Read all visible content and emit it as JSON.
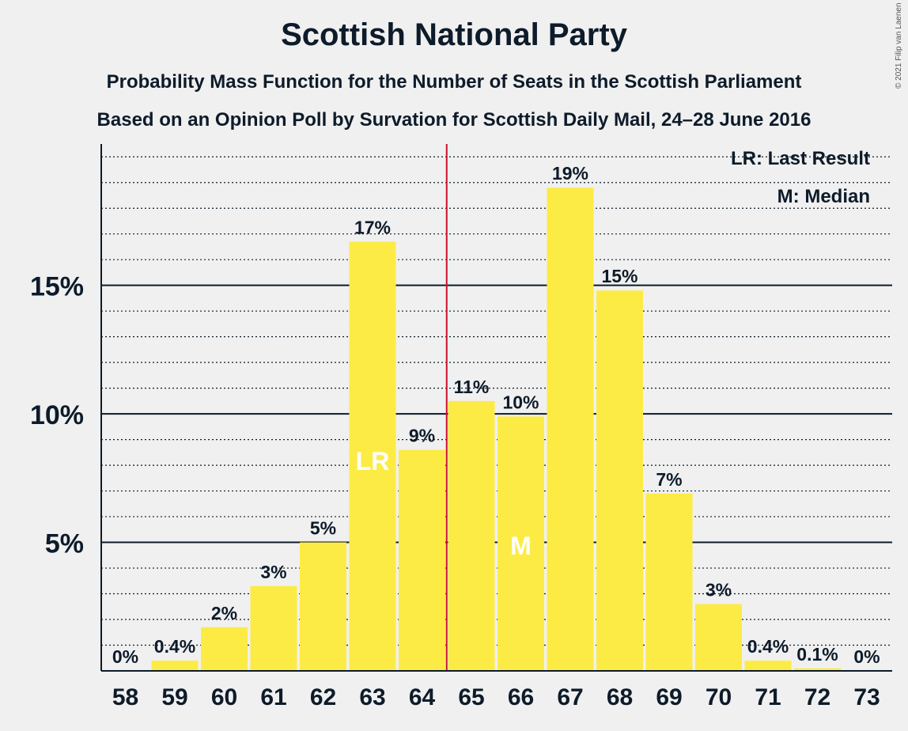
{
  "header": {
    "title": "Scottish National Party",
    "subtitle1": "Probability Mass Function for the Number of Seats in the Scottish Parliament",
    "subtitle2": "Based on an Opinion Poll by Survation for Scottish Daily Mail, 24–28 June 2016",
    "copyright": "© 2021 Filip van Laenen"
  },
  "legend": {
    "last_result": "LR: Last Result",
    "median": "M: Median"
  },
  "chart_data": {
    "type": "bar",
    "title": "Scottish National Party",
    "xlabel": "",
    "ylabel": "",
    "categories": [
      "58",
      "59",
      "60",
      "61",
      "62",
      "63",
      "64",
      "65",
      "66",
      "67",
      "68",
      "69",
      "70",
      "71",
      "72",
      "73"
    ],
    "values": [
      0,
      0.4,
      1.7,
      3.3,
      5.0,
      16.7,
      8.6,
      10.5,
      9.9,
      18.8,
      14.8,
      6.9,
      2.6,
      0.4,
      0.1,
      0
    ],
    "value_labels": [
      "0%",
      "0.4%",
      "2%",
      "3%",
      "5%",
      "17%",
      "9%",
      "11%",
      "10%",
      "19%",
      "15%",
      "7%",
      "3%",
      "0.4%",
      "0.1%",
      "0%"
    ],
    "ylim": [
      0,
      20.5
    ],
    "y_ticks": [
      5,
      10,
      15
    ],
    "y_tick_labels": [
      "5%",
      "10%",
      "15%"
    ],
    "minor_gridline_step": 1,
    "bar_color": "#fdeb45",
    "gridline_color": "#0d1b2a",
    "majority_line_color": "#c8102e",
    "majority_line_after_seat": "64",
    "bar_markers": {
      "63": "LR",
      "66": "M"
    },
    "legend_position": "top-right"
  }
}
